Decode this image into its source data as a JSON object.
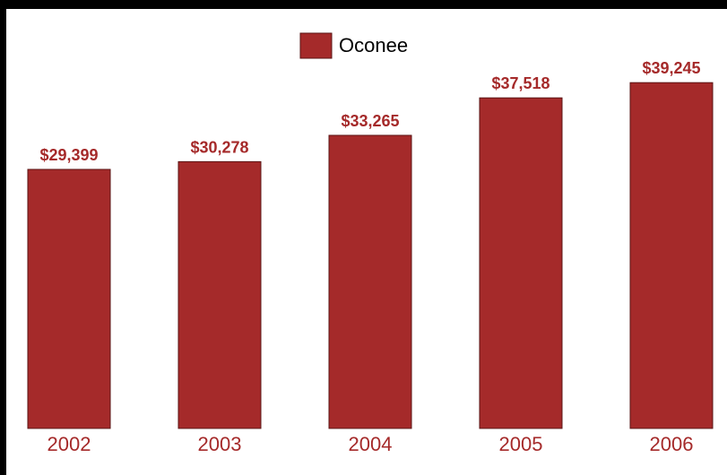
{
  "chart_data": {
    "type": "bar",
    "categories": [
      "2002",
      "2003",
      "2004",
      "2005",
      "2006"
    ],
    "series": [
      {
        "name": "Oconee",
        "values": [
          29399,
          30278,
          33265,
          37518,
          39245
        ],
        "value_labels": [
          "$29,399",
          "$30,278",
          "$33,265",
          "$37,518",
          "$39,245"
        ],
        "color": "#a52a2a"
      }
    ],
    "title": "",
    "xlabel": "",
    "ylabel": "",
    "ylim": [
      0,
      42000
    ],
    "grid": false,
    "legend_position": "top-center"
  },
  "colors": {
    "bar": "#a52a2a",
    "bar_edge": "#5a1414",
    "label": "#a52a2a",
    "frame": "#000000",
    "plot_bg": "#ffffff"
  }
}
